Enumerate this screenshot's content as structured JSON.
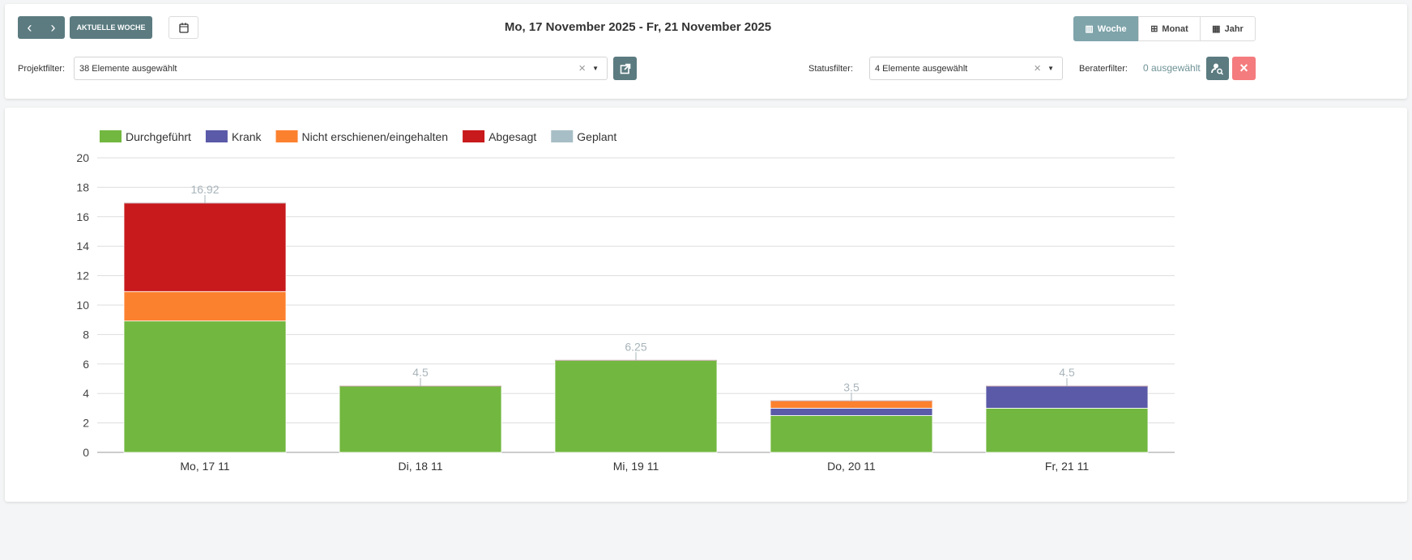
{
  "toolbar": {
    "prev": "‹",
    "next": "›",
    "current_week": "AKTUELLE WOCHE",
    "date_range": "Mo, 17 November 2025 - Fr, 21 November 2025",
    "views": [
      {
        "label": "Woche",
        "icon": "columns-icon"
      },
      {
        "label": "Monat",
        "icon": "grid-icon"
      },
      {
        "label": "Jahr",
        "icon": "calendar-icon"
      }
    ]
  },
  "filters": {
    "project_label": "Projektfilter:",
    "project_value": "38 Elemente ausgewählt",
    "status_label": "Statusfilter:",
    "status_value": "4 Elemente ausgewählt",
    "berater_label": "Beraterfilter:",
    "berater_value": "0 ausgewählt",
    "clear": "×",
    "close": "×"
  },
  "chart_data": {
    "type": "bar",
    "stacked": true,
    "categories": [
      "Mo, 17 11",
      "Di, 18 11",
      "Mi, 19 11",
      "Do, 20 11",
      "Fr, 21 11"
    ],
    "series": [
      {
        "name": "Durchgeführt",
        "color": "#72b73f",
        "values": [
          8.92,
          4.5,
          6.25,
          2.5,
          3
        ]
      },
      {
        "name": "Krank",
        "color": "#5a5aa8",
        "values": [
          0,
          0,
          0,
          0.5,
          1.5
        ]
      },
      {
        "name": "Nicht erschienen/eingehalten",
        "color": "#fc812f",
        "values": [
          2,
          0,
          0,
          0.5,
          0
        ]
      },
      {
        "name": "Abgesagt",
        "color": "#c8191c",
        "values": [
          6,
          0,
          0,
          0,
          0
        ]
      },
      {
        "name": "Geplant",
        "color": "#a8bec6",
        "values": [
          0,
          0,
          0,
          0,
          0
        ]
      }
    ],
    "totals": [
      "16.92",
      "4.5",
      "6.25",
      "3.5",
      "4.5"
    ],
    "ylim": [
      0,
      20
    ],
    "yticks": [
      0,
      2,
      4,
      6,
      8,
      10,
      12,
      14,
      16,
      18,
      20
    ],
    "grid": true,
    "legend": "top-left"
  }
}
